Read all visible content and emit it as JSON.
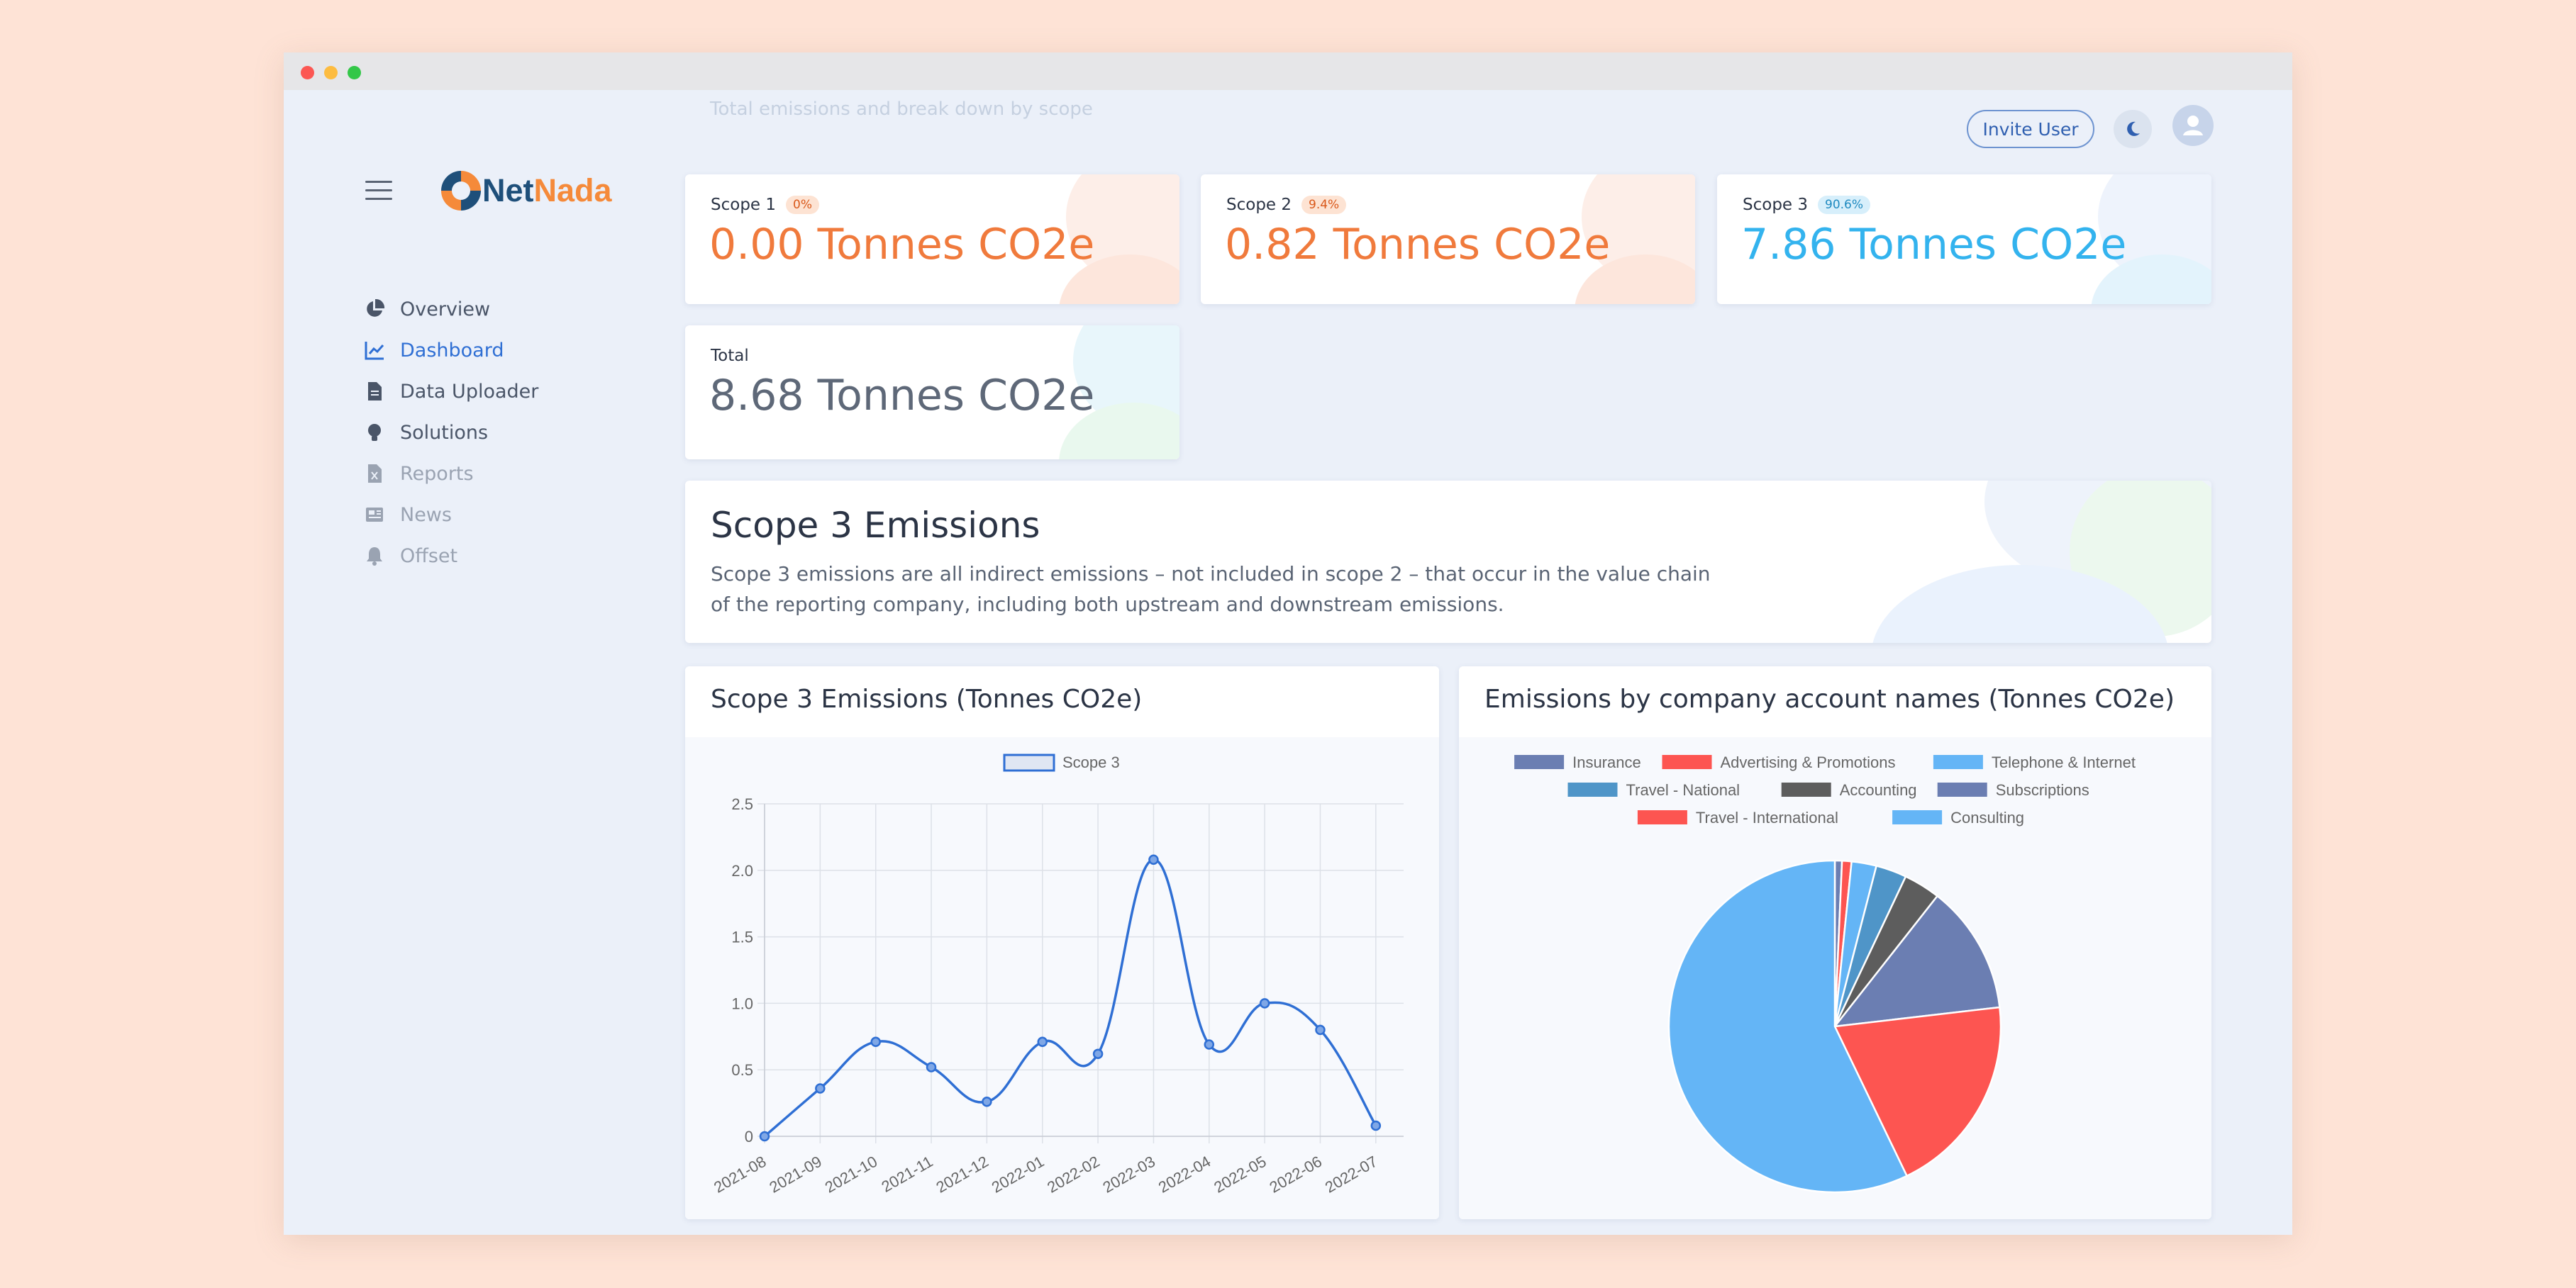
{
  "app": {
    "name_part1": "Net",
    "name_part2": "Nada"
  },
  "header": {
    "subtitle": "Total emissions and break down by scope",
    "invite_label": "Invite User"
  },
  "sidebar": {
    "items": [
      {
        "label": "Overview",
        "icon": "pie-chart-icon"
      },
      {
        "label": "Dashboard",
        "icon": "line-chart-icon",
        "active": true
      },
      {
        "label": "Data Uploader",
        "icon": "file-icon",
        "expandable": true
      },
      {
        "label": "Solutions",
        "icon": "lightbulb-icon",
        "expandable": true
      },
      {
        "label": "Reports",
        "icon": "report-file-icon",
        "disabled": true
      },
      {
        "label": "News",
        "icon": "newspaper-icon",
        "disabled": true
      },
      {
        "label": "Offset",
        "icon": "bell-icon",
        "disabled": true
      }
    ]
  },
  "scopes": [
    {
      "label": "Scope 1",
      "badge": "0%",
      "value": "0.00 Tonnes CO2e",
      "color": "#f07a3c"
    },
    {
      "label": "Scope 2",
      "badge": "9.4%",
      "value": "0.82 Tonnes CO2e",
      "color": "#f07a3c"
    },
    {
      "label": "Scope 3",
      "badge": "90.6%",
      "value": "7.86 Tonnes CO2e",
      "color": "#33b3ee"
    }
  ],
  "total": {
    "label": "Total",
    "value": "8.68 Tonnes CO2e"
  },
  "scope3_info": {
    "title": "Scope 3 Emissions",
    "description": "Scope 3 emissions are all indirect emissions – not included in scope 2 – that occur in the value chain of the reporting company, including both upstream and downstream emissions."
  },
  "chart_data": [
    {
      "type": "line",
      "title": "Scope 3 Emissions (Tonnes CO2e)",
      "x": [
        "2021-08",
        "2021-09",
        "2021-10",
        "2021-11",
        "2021-12",
        "2022-01",
        "2022-02",
        "2022-03",
        "2022-04",
        "2022-05",
        "2022-06",
        "2022-07"
      ],
      "series": [
        {
          "name": "Scope 3",
          "values": [
            0.0,
            0.36,
            0.71,
            0.52,
            0.26,
            0.71,
            0.62,
            2.08,
            0.69,
            1.0,
            0.8,
            0.08
          ],
          "color": "#2f6fd4"
        }
      ],
      "ylim": [
        0,
        2.5
      ],
      "yticks": [
        0,
        0.5,
        1.0,
        1.5,
        2.0,
        2.5
      ],
      "ytick_labels": [
        "0",
        "0.5",
        "1.0",
        "1.5",
        "2.0",
        "2.5"
      ],
      "grid": true,
      "legend": "top"
    },
    {
      "type": "pie",
      "title": "Emissions by company account names (Tonnes CO2e)",
      "labels": [
        "Insurance",
        "Advertising & Promotions",
        "Telephone & Internet",
        "Travel - National",
        "Accounting",
        "Subscriptions",
        "Travel - International",
        "Consulting"
      ],
      "values": [
        0.06,
        0.08,
        0.21,
        0.26,
        0.31,
        1.09,
        1.71,
        4.96
      ],
      "colors": [
        "#6b7eb2",
        "#fd5551",
        "#64b5f6",
        "#4f95c8",
        "#5d5d5d",
        "#6b7eb2",
        "#fd5551",
        "#64b5f6"
      ],
      "legend": "top"
    }
  ]
}
